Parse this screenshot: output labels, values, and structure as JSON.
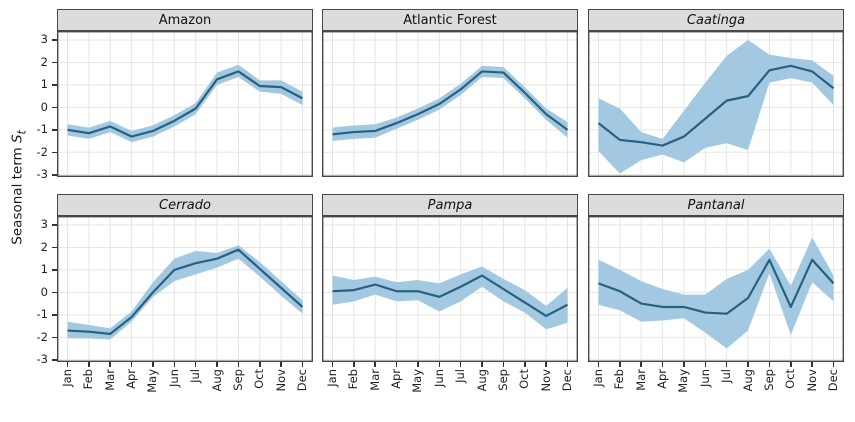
{
  "colors": {
    "band": "#a3c9e2",
    "line": "#27617f",
    "strip_bg": "#dcdcdc",
    "border": "#474747",
    "grid": "#e5e5e5",
    "tick": "#333333",
    "text": "#1a1a1a"
  },
  "chart_data": {
    "type": "line",
    "layout": "facet-grid-2x3",
    "categories": [
      "Jan",
      "Feb",
      "Mar",
      "Apr",
      "May",
      "Jun",
      "Jul",
      "Aug",
      "Sep",
      "Oct",
      "Nov",
      "Dec"
    ],
    "ylabel": {
      "text": "Seasonal term",
      "var": "S",
      "sub": "t"
    },
    "ylim": [
      -3,
      3
    ],
    "y_ticks": [
      3,
      2,
      1,
      0,
      -1,
      -2,
      -3
    ],
    "grid": true,
    "band_style": "confidence-interval",
    "facets": [
      {
        "name": "Amazon",
        "italic": false,
        "values": [
          -1.0,
          -1.15,
          -0.85,
          -1.3,
          -1.05,
          -0.6,
          -0.05,
          1.25,
          1.6,
          0.95,
          0.9,
          0.4
        ],
        "upper": [
          -0.75,
          -0.9,
          -0.6,
          -1.05,
          -0.8,
          -0.35,
          0.2,
          1.55,
          1.9,
          1.2,
          1.2,
          0.7
        ],
        "lower": [
          -1.25,
          -1.4,
          -1.1,
          -1.55,
          -1.3,
          -0.85,
          -0.3,
          1.0,
          1.35,
          0.7,
          0.6,
          0.1
        ]
      },
      {
        "name": "Atlantic Forest",
        "italic": false,
        "values": [
          -1.2,
          -1.1,
          -1.05,
          -0.7,
          -0.3,
          0.15,
          0.8,
          1.6,
          1.55,
          0.65,
          -0.3,
          -1.0
        ],
        "upper": [
          -0.9,
          -0.8,
          -0.75,
          -0.45,
          -0.05,
          0.4,
          1.05,
          1.85,
          1.8,
          0.9,
          -0.05,
          -0.65
        ],
        "lower": [
          -1.5,
          -1.4,
          -1.35,
          -0.95,
          -0.55,
          -0.1,
          0.55,
          1.35,
          1.3,
          0.4,
          -0.55,
          -1.35
        ]
      },
      {
        "name": "Caatinga",
        "italic": true,
        "values": [
          -0.7,
          -1.45,
          -1.55,
          -1.7,
          -1.3,
          -0.5,
          0.3,
          0.5,
          1.65,
          1.85,
          1.6,
          0.85
        ],
        "upper": [
          0.4,
          -0.05,
          -1.1,
          -1.4,
          -0.15,
          1.1,
          2.3,
          3.0,
          2.35,
          2.2,
          2.1,
          1.4
        ],
        "lower": [
          -1.95,
          -2.95,
          -2.35,
          -2.1,
          -2.45,
          -1.8,
          -1.6,
          -1.9,
          1.1,
          1.3,
          1.1,
          0.1
        ]
      },
      {
        "name": "Cerrado",
        "italic": true,
        "values": [
          -1.7,
          -1.75,
          -1.85,
          -1.1,
          0.0,
          1.0,
          1.3,
          1.5,
          1.9,
          1.05,
          0.2,
          -0.65
        ],
        "upper": [
          -1.3,
          -1.45,
          -1.6,
          -0.85,
          0.45,
          1.5,
          1.85,
          1.75,
          2.1,
          1.35,
          0.5,
          -0.35
        ],
        "lower": [
          -2.05,
          -2.05,
          -2.1,
          -1.3,
          -0.2,
          0.5,
          0.8,
          1.1,
          1.5,
          0.7,
          -0.15,
          -0.95
        ]
      },
      {
        "name": "Pampa",
        "italic": true,
        "values": [
          0.05,
          0.1,
          0.35,
          0.05,
          0.05,
          -0.2,
          0.25,
          0.75,
          0.15,
          -0.45,
          -1.05,
          -0.55
        ],
        "upper": [
          0.75,
          0.55,
          0.7,
          0.45,
          0.55,
          0.4,
          0.8,
          1.15,
          0.6,
          0.1,
          -0.6,
          0.2
        ],
        "lower": [
          -0.55,
          -0.4,
          -0.1,
          -0.4,
          -0.35,
          -0.85,
          -0.4,
          0.25,
          -0.4,
          -0.9,
          -1.65,
          -1.35
        ]
      },
      {
        "name": "Pantanal",
        "italic": true,
        "values": [
          0.4,
          0.05,
          -0.5,
          -0.65,
          -0.65,
          -0.9,
          -0.95,
          -0.25,
          1.45,
          -0.65,
          1.45,
          0.4
        ],
        "upper": [
          1.45,
          1.0,
          0.5,
          0.15,
          -0.1,
          -0.1,
          0.6,
          1.0,
          1.95,
          0.3,
          2.45,
          0.75
        ],
        "lower": [
          -0.55,
          -0.8,
          -1.3,
          -1.25,
          -1.15,
          -1.8,
          -2.5,
          -1.7,
          0.85,
          -1.9,
          0.45,
          -0.4
        ]
      }
    ]
  }
}
